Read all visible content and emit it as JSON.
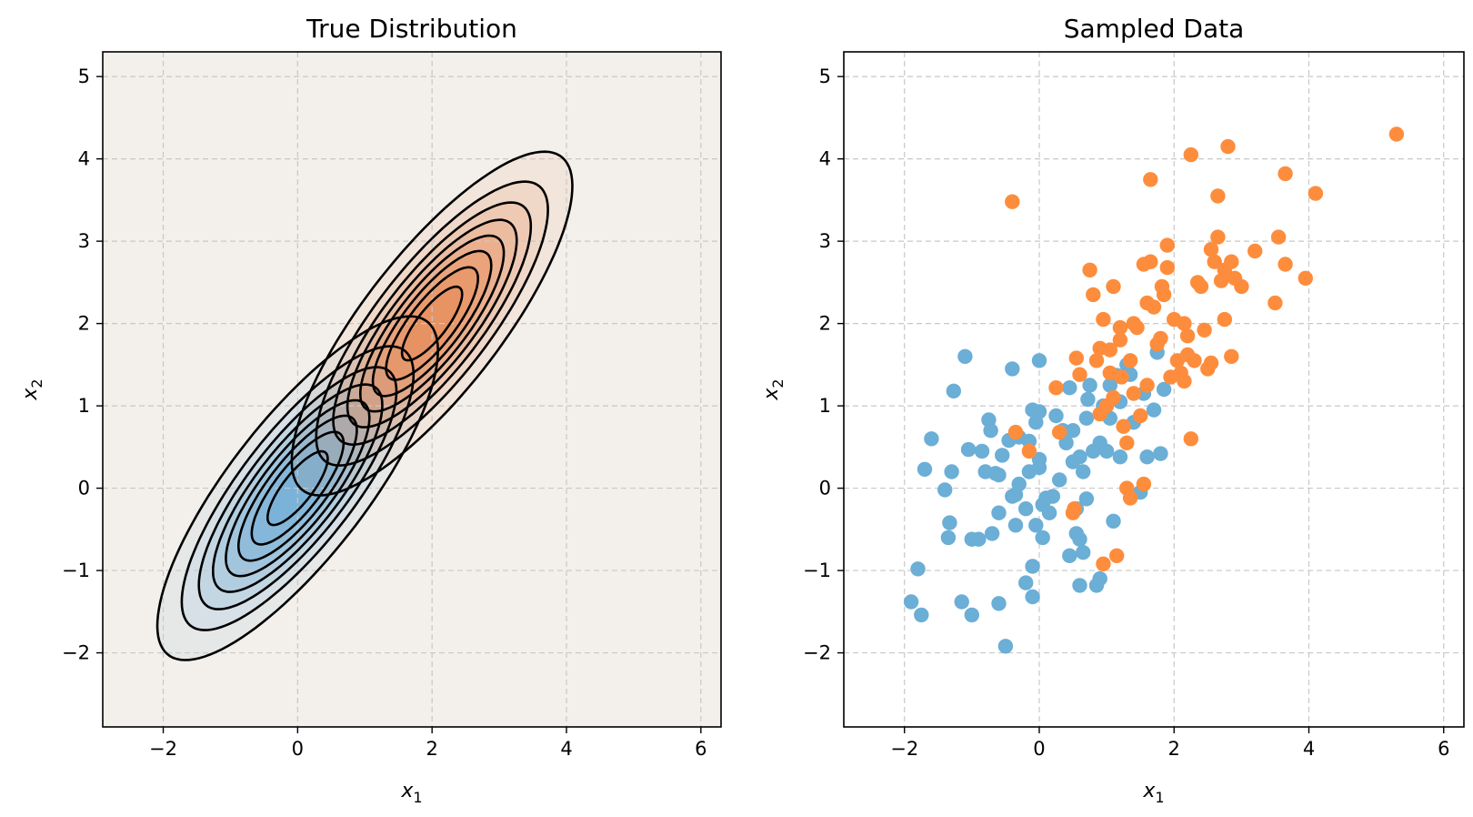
{
  "chart_data": [
    {
      "type": "contour",
      "title": "True Distribution",
      "xlabel": "x",
      "xlabel_sub": "1",
      "ylabel": "x",
      "ylabel_sub": "2",
      "xlim": [
        -2.9,
        6.3
      ],
      "ylim": [
        -2.9,
        5.3
      ],
      "xticks": [
        -2,
        0,
        2,
        4,
        6
      ],
      "yticks": [
        -2,
        -1,
        0,
        1,
        2,
        3,
        4,
        5
      ],
      "grid": true,
      "background_color": "#f3efea",
      "components": [
        {
          "mean": [
            0,
            0
          ],
          "cov": [
            [
              1,
              0.8
            ],
            [
              0.8,
              1
            ]
          ],
          "color": "#6aa9d6"
        },
        {
          "mean": [
            2,
            2
          ],
          "cov": [
            [
              1,
              0.8
            ],
            [
              0.8,
              1
            ]
          ],
          "color": "#e8864f"
        }
      ],
      "levels": [
        0.03,
        0.06,
        0.09,
        0.12,
        0.15,
        0.18,
        0.21,
        0.24
      ]
    },
    {
      "type": "scatter",
      "title": "Sampled Data",
      "xlabel": "x",
      "xlabel_sub": "1",
      "ylabel": "x",
      "ylabel_sub": "2",
      "xlim": [
        -2.9,
        6.3
      ],
      "ylim": [
        -2.9,
        5.3
      ],
      "xticks": [
        -2,
        0,
        2,
        4,
        6
      ],
      "yticks": [
        -2,
        -1,
        0,
        1,
        2,
        3,
        4,
        5
      ],
      "grid": true,
      "series": [
        {
          "color": "#6baed6",
          "points": [
            [
              -1.9,
              -1.38
            ],
            [
              -1.8,
              -0.98
            ],
            [
              -1.75,
              -1.54
            ],
            [
              -1.7,
              0.23
            ],
            [
              -1.6,
              0.6
            ],
            [
              -1.4,
              -0.02
            ],
            [
              -1.35,
              -0.6
            ],
            [
              -1.33,
              -0.42
            ],
            [
              -1.3,
              0.2
            ],
            [
              -1.27,
              1.18
            ],
            [
              -1.15,
              -1.38
            ],
            [
              -1.1,
              1.6
            ],
            [
              -1.05,
              0.47
            ],
            [
              -1.0,
              -1.54
            ],
            [
              -1.0,
              -0.62
            ],
            [
              -0.9,
              -0.62
            ],
            [
              -0.85,
              0.45
            ],
            [
              -0.8,
              0.2
            ],
            [
              -0.75,
              0.83
            ],
            [
              -0.72,
              0.7
            ],
            [
              -0.7,
              -0.55
            ],
            [
              -0.65,
              0.18
            ],
            [
              -0.6,
              -0.3
            ],
            [
              -0.6,
              0.16
            ],
            [
              -0.6,
              -1.4
            ],
            [
              -0.55,
              0.4
            ],
            [
              -0.5,
              -1.92
            ],
            [
              -0.45,
              0.58
            ],
            [
              -0.4,
              1.45
            ],
            [
              -0.4,
              -0.1
            ],
            [
              -0.35,
              -0.45
            ],
            [
              -0.35,
              -0.08
            ],
            [
              -0.3,
              0.05
            ],
            [
              -0.3,
              0.62
            ],
            [
              -0.2,
              -0.25
            ],
            [
              -0.2,
              -1.15
            ],
            [
              -0.15,
              0.2
            ],
            [
              -0.15,
              0.57
            ],
            [
              -0.1,
              0.95
            ],
            [
              -0.1,
              -0.95
            ],
            [
              -0.1,
              -1.32
            ],
            [
              -0.05,
              -0.45
            ],
            [
              -0.05,
              0.8
            ],
            [
              0.0,
              0.35
            ],
            [
              0.0,
              0.25
            ],
            [
              0.0,
              1.55
            ],
            [
              0.0,
              0.93
            ],
            [
              0.05,
              -0.2
            ],
            [
              0.05,
              -0.6
            ],
            [
              0.1,
              -0.12
            ],
            [
              0.15,
              -0.3
            ],
            [
              0.2,
              -0.1
            ],
            [
              0.25,
              0.88
            ],
            [
              0.3,
              0.1
            ],
            [
              0.35,
              0.7
            ],
            [
              0.4,
              0.55
            ],
            [
              0.45,
              1.22
            ],
            [
              0.45,
              -0.82
            ],
            [
              0.5,
              0.32
            ],
            [
              0.5,
              0.7
            ],
            [
              0.55,
              -0.25
            ],
            [
              0.55,
              -0.55
            ],
            [
              0.6,
              0.38
            ],
            [
              0.6,
              -0.62
            ],
            [
              0.6,
              -1.18
            ],
            [
              0.65,
              -0.78
            ],
            [
              0.65,
              0.2
            ],
            [
              0.7,
              -0.13
            ],
            [
              0.7,
              0.85
            ],
            [
              0.72,
              1.08
            ],
            [
              0.75,
              1.25
            ],
            [
              0.8,
              0.45
            ],
            [
              0.85,
              -1.18
            ],
            [
              0.9,
              0.55
            ],
            [
              0.9,
              -1.1
            ],
            [
              0.95,
              1.0
            ],
            [
              1.0,
              0.45
            ],
            [
              1.05,
              1.25
            ],
            [
              1.05,
              0.85
            ],
            [
              1.1,
              -0.4
            ],
            [
              1.15,
              1.37
            ],
            [
              1.2,
              0.38
            ],
            [
              1.2,
              1.05
            ],
            [
              1.3,
              1.5
            ],
            [
              1.35,
              1.38
            ],
            [
              1.4,
              0.8
            ],
            [
              1.5,
              -0.05
            ],
            [
              1.55,
              1.15
            ],
            [
              1.6,
              0.38
            ],
            [
              1.7,
              0.95
            ],
            [
              1.75,
              1.65
            ],
            [
              1.8,
              0.42
            ],
            [
              1.85,
              1.2
            ]
          ]
        },
        {
          "color": "#fd8d3c",
          "points": [
            [
              -0.4,
              3.48
            ],
            [
              -0.35,
              0.68
            ],
            [
              -0.15,
              0.45
            ],
            [
              0.25,
              1.22
            ],
            [
              0.3,
              0.68
            ],
            [
              0.5,
              -0.3
            ],
            [
              0.52,
              -0.25
            ],
            [
              0.55,
              1.58
            ],
            [
              0.6,
              1.38
            ],
            [
              0.75,
              2.65
            ],
            [
              0.8,
              2.35
            ],
            [
              0.85,
              1.55
            ],
            [
              0.9,
              1.7
            ],
            [
              0.9,
              0.9
            ],
            [
              0.95,
              -0.92
            ],
            [
              0.95,
              2.05
            ],
            [
              1.0,
              1.0
            ],
            [
              1.05,
              1.4
            ],
            [
              1.05,
              1.68
            ],
            [
              1.1,
              2.45
            ],
            [
              1.1,
              1.1
            ],
            [
              1.15,
              -0.82
            ],
            [
              1.2,
              1.95
            ],
            [
              1.2,
              1.8
            ],
            [
              1.22,
              1.35
            ],
            [
              1.25,
              0.75
            ],
            [
              1.3,
              0.55
            ],
            [
              1.3,
              0.0
            ],
            [
              1.35,
              1.55
            ],
            [
              1.35,
              -0.12
            ],
            [
              1.4,
              1.15
            ],
            [
              1.4,
              2.0
            ],
            [
              1.45,
              1.95
            ],
            [
              1.5,
              0.88
            ],
            [
              1.55,
              0.05
            ],
            [
              1.55,
              2.72
            ],
            [
              1.6,
              1.25
            ],
            [
              1.6,
              2.25
            ],
            [
              1.65,
              3.75
            ],
            [
              1.65,
              2.75
            ],
            [
              1.7,
              2.2
            ],
            [
              1.75,
              1.75
            ],
            [
              1.8,
              1.82
            ],
            [
              1.82,
              2.45
            ],
            [
              1.85,
              2.35
            ],
            [
              1.9,
              2.68
            ],
            [
              1.9,
              2.95
            ],
            [
              1.95,
              1.35
            ],
            [
              2.0,
              2.05
            ],
            [
              2.05,
              1.55
            ],
            [
              2.1,
              1.4
            ],
            [
              2.15,
              1.3
            ],
            [
              2.15,
              2.0
            ],
            [
              2.2,
              1.85
            ],
            [
              2.2,
              1.62
            ],
            [
              2.25,
              0.6
            ],
            [
              2.25,
              4.05
            ],
            [
              2.3,
              1.55
            ],
            [
              2.35,
              2.5
            ],
            [
              2.4,
              2.45
            ],
            [
              2.45,
              1.92
            ],
            [
              2.5,
              1.45
            ],
            [
              2.55,
              1.52
            ],
            [
              2.55,
              2.9
            ],
            [
              2.6,
              2.75
            ],
            [
              2.65,
              3.05
            ],
            [
              2.65,
              3.55
            ],
            [
              2.7,
              2.52
            ],
            [
              2.75,
              2.65
            ],
            [
              2.75,
              2.05
            ],
            [
              2.8,
              4.15
            ],
            [
              2.85,
              1.6
            ],
            [
              2.85,
              2.75
            ],
            [
              2.9,
              2.55
            ],
            [
              3.0,
              2.45
            ],
            [
              3.2,
              2.88
            ],
            [
              3.5,
              2.25
            ],
            [
              3.55,
              3.05
            ],
            [
              3.65,
              2.72
            ],
            [
              3.65,
              3.82
            ],
            [
              3.95,
              2.55
            ],
            [
              4.1,
              3.58
            ],
            [
              5.3,
              4.3
            ]
          ]
        }
      ]
    }
  ]
}
